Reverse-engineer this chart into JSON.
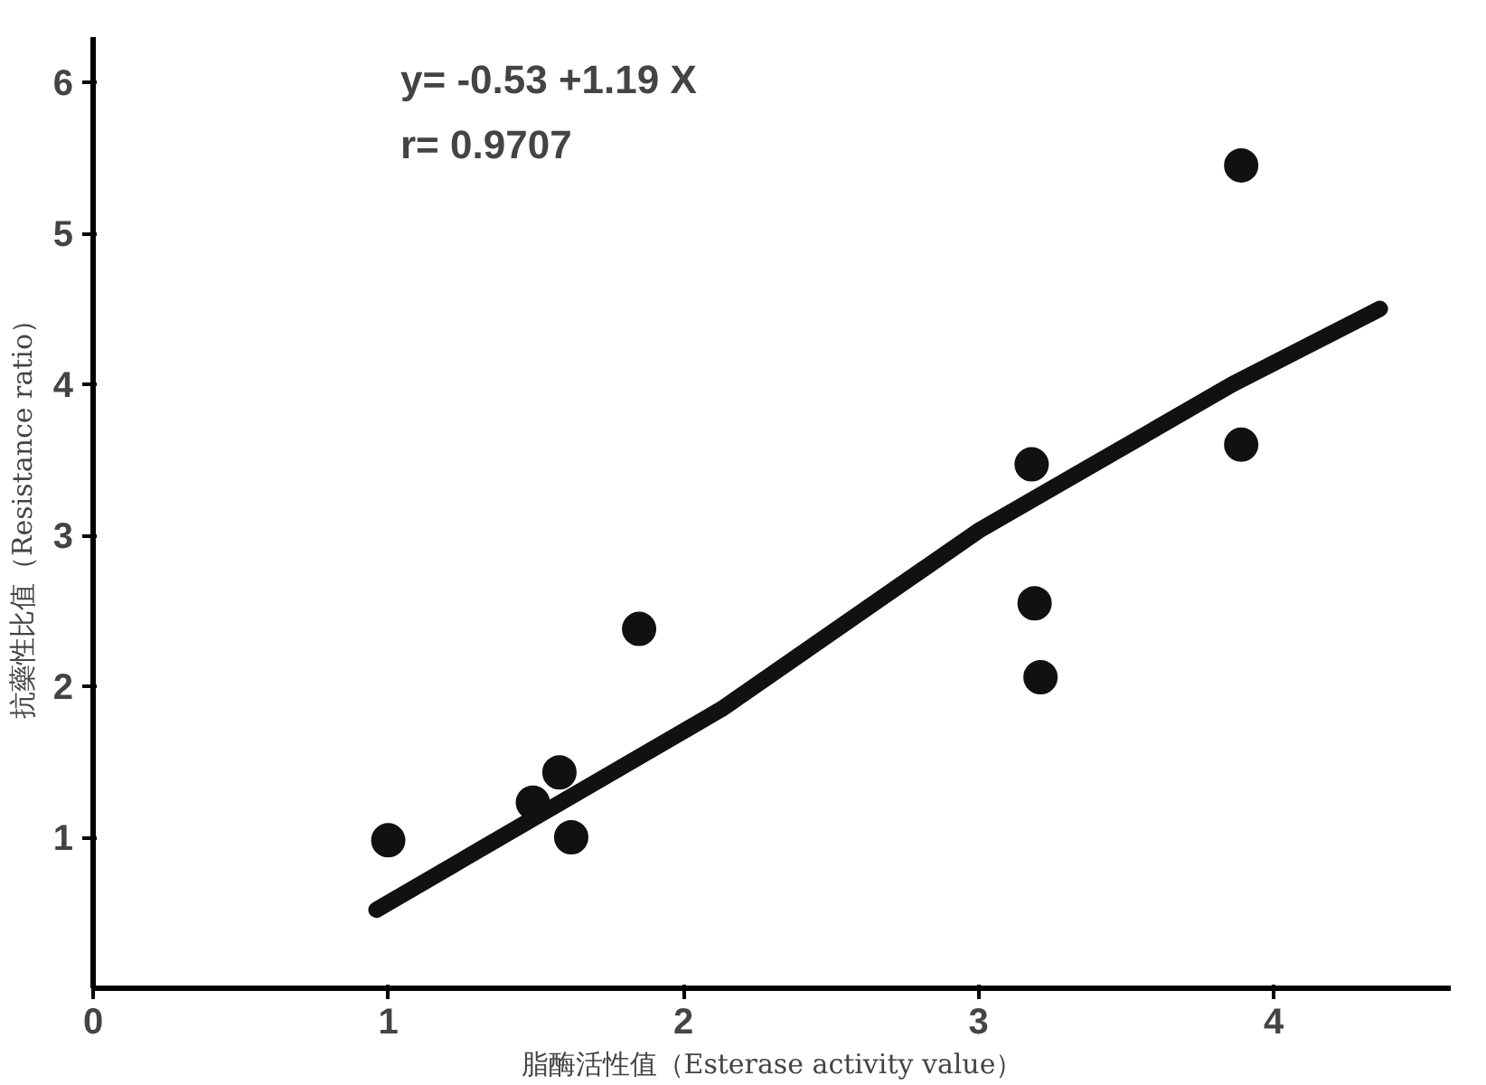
{
  "chart_data": {
    "type": "scatter",
    "xlabel": "脂酶活性值（Esterase activity value）",
    "ylabel": "抗藥性比值（Resistance ratio）",
    "annotations": [
      "y= -0.53 +1.19 X",
      "r= 0.9707"
    ],
    "xlim": [
      0,
      4.6
    ],
    "ylim": [
      0,
      6.3
    ],
    "xticks": [
      0,
      1,
      2,
      3,
      4
    ],
    "yticks": [
      1,
      2,
      3,
      4,
      5,
      6
    ],
    "grid": false,
    "series": [
      {
        "color": "#111111",
        "marker": "circle",
        "x": [
          1.0,
          1.49,
          1.58,
          1.62,
          1.85,
          3.18,
          3.19,
          3.21,
          3.89,
          3.89
        ],
        "values": [
          0.98,
          1.23,
          1.43,
          1.0,
          2.38,
          3.47,
          2.55,
          2.06,
          5.45,
          3.6
        ]
      },
      {
        "type": "line",
        "marker": "none",
        "color": "#111111",
        "x": [
          0.96,
          2.13,
          3.0,
          3.86,
          4.36
        ],
        "values": [
          0.52,
          1.85,
          3.03,
          4.0,
          4.5
        ]
      }
    ]
  }
}
